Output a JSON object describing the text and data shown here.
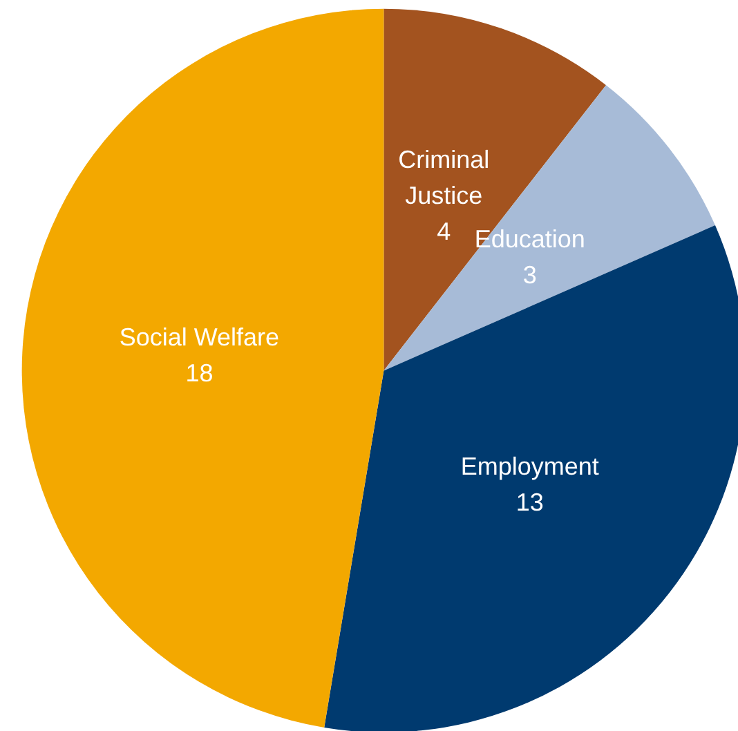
{
  "chart_data": {
    "type": "pie",
    "categories": [
      "Criminal Justice",
      "Education",
      "Employment",
      "Social Welfare"
    ],
    "values": [
      4,
      3,
      13,
      18
    ],
    "colors": [
      "#a3531f",
      "#a7bbd7",
      "#003a6f",
      "#f3a800"
    ],
    "data_labels": true,
    "legend": false
  }
}
